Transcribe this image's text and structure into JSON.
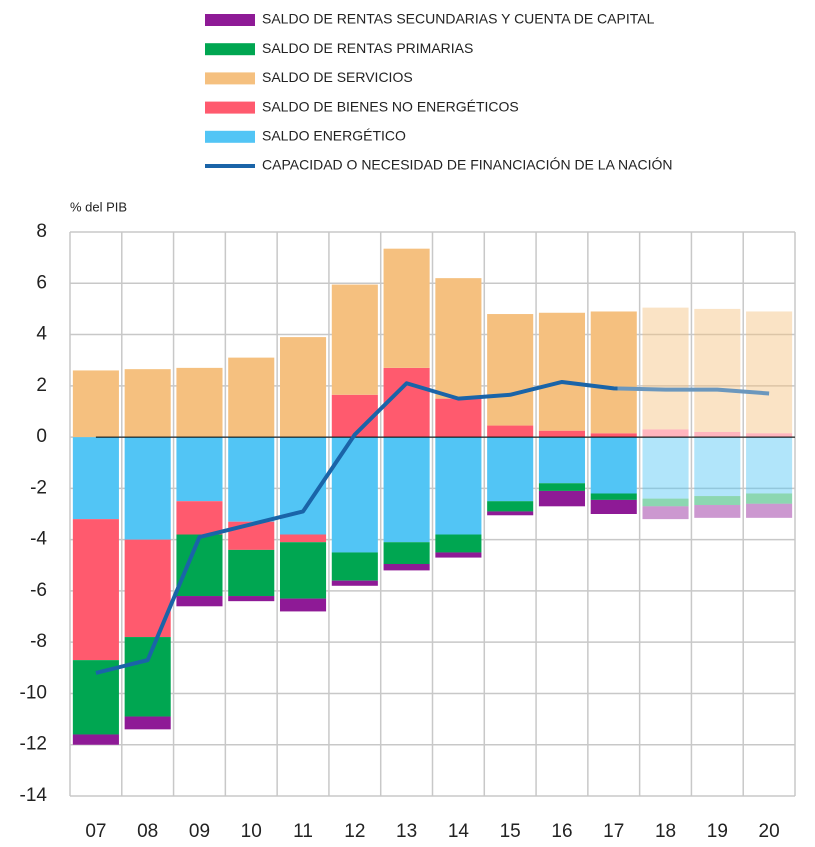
{
  "chart_data": {
    "type": "stacked_bar_line",
    "y_axis_label": "% del PIB",
    "categories": [
      "07",
      "08",
      "09",
      "10",
      "11",
      "12",
      "13",
      "14",
      "15",
      "16",
      "17",
      "18",
      "19",
      "20"
    ],
    "projected": [
      false,
      false,
      false,
      false,
      false,
      false,
      false,
      false,
      false,
      false,
      false,
      true,
      true,
      true
    ],
    "series": [
      {
        "name": "SALDO DE RENTAS SECUNDARIAS Y CUENTA DE CAPITAL",
        "color": "#8e1a96",
        "type": "bar",
        "values": [
          -0.4,
          -0.5,
          -0.4,
          -0.2,
          -0.5,
          -0.2,
          -0.25,
          -0.2,
          -0.15,
          -0.6,
          -0.55,
          -0.5,
          -0.5,
          -0.55
        ]
      },
      {
        "name": "SALDO DE RENTAS PRIMARIAS",
        "color": "#00a651",
        "type": "bar",
        "values": [
          -2.9,
          -3.1,
          -2.4,
          -1.8,
          -2.2,
          -1.1,
          -0.85,
          -0.7,
          -0.4,
          -0.3,
          -0.25,
          -0.3,
          -0.35,
          -0.4
        ]
      },
      {
        "name": "SALDO DE SERVICIOS",
        "color": "#f5c07f",
        "type": "bar",
        "values": [
          2.6,
          2.65,
          2.7,
          3.1,
          3.9,
          4.3,
          4.65,
          4.7,
          4.35,
          4.6,
          4.75,
          4.75,
          4.8,
          4.75
        ]
      },
      {
        "name": "SALDO DE BIENES NO ENERGÉTICOS",
        "color": "#ff5a6e",
        "type": "bar",
        "values": [
          -5.5,
          -3.8,
          -1.3,
          -1.1,
          -0.3,
          1.65,
          2.7,
          1.5,
          0.45,
          0.25,
          0.15,
          0.3,
          0.2,
          0.15
        ]
      },
      {
        "name": "SALDO ENERGÉTICO",
        "color": "#52c5f5",
        "type": "bar",
        "values": [
          -3.2,
          -4.0,
          -2.5,
          -3.3,
          -3.8,
          -4.5,
          -4.1,
          -3.8,
          -2.5,
          -1.8,
          -2.2,
          -2.4,
          -2.3,
          -2.2
        ]
      },
      {
        "name": "CAPACIDAD O NECESIDAD DE FINANCIACIÓN DE LA NACIÓN",
        "color": "#1a64a8",
        "projected_color": "#6b97bd",
        "type": "line",
        "values": [
          -9.2,
          -8.7,
          -3.9,
          -3.4,
          -2.9,
          0.1,
          2.1,
          1.5,
          1.65,
          2.15,
          1.9,
          1.85,
          1.85,
          1.7
        ]
      }
    ],
    "ylim": [
      -14,
      8
    ],
    "yticks": [
      -14,
      -12,
      -10,
      -8,
      -6,
      -4,
      -2,
      0,
      2,
      4,
      6,
      8
    ],
    "grid": true
  }
}
